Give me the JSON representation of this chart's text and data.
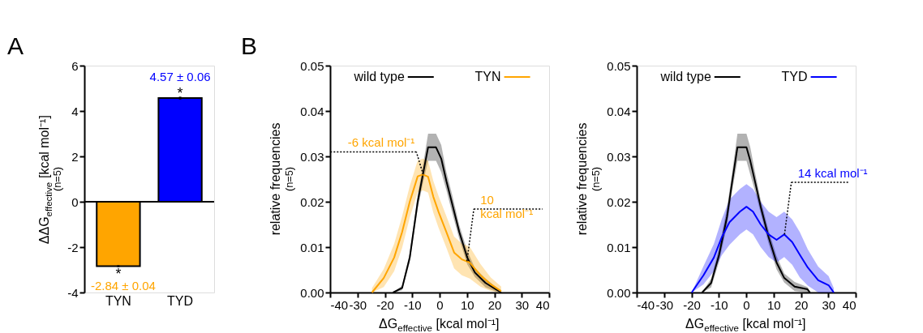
{
  "chart_data": [
    {
      "type": "bar",
      "categories": [
        "TYN",
        "TYD"
      ],
      "values": [
        -2.84,
        4.57
      ],
      "errors": [
        0.04,
        0.06
      ],
      "colors": [
        "#ffa500",
        "#0000ff"
      ],
      "value_labels": [
        "-2.84 ± 0.04",
        "4.57 ± 0.06"
      ],
      "ylabel": "ΔΔG$_{effective}$ [kcal mol⁻¹]\n(n=5)",
      "ylim": [
        -4,
        6
      ],
      "yticks": [
        -4,
        -2,
        0,
        2,
        4,
        6
      ],
      "ref_lines": [
        {
          "axis": "y",
          "value": 0
        }
      ],
      "annotations": [
        "A",
        {
          "text": "*",
          "x": "TYN",
          "y": -2.88
        },
        {
          "text": "*",
          "x": "TYD",
          "y": 4.63
        }
      ],
      "legend": false
    },
    {
      "type": "line",
      "xlabel": "ΔG$_{effective}$ [kcal mol⁻¹]",
      "ylabel": "relative frequencies\n(n=5)",
      "xlim": [
        -40,
        40
      ],
      "xticks": [
        -40,
        -30,
        -20,
        -10,
        0,
        10,
        20,
        30,
        40
      ],
      "ylim": [
        0,
        0.05
      ],
      "yticks": [
        {
          "value": 0,
          "label": "0.00"
        },
        {
          "value": 0.01,
          "label": "0.01"
        },
        {
          "value": 0.02,
          "label": "0.02"
        },
        {
          "value": 0.03,
          "label": "0.03"
        },
        {
          "value": 0.04,
          "label": "0.04"
        },
        {
          "value": 0.05,
          "label": "0.05"
        }
      ],
      "legend": "top",
      "annotations": [
        "B",
        {
          "text": "-6 kcal mol⁻¹",
          "x": -6,
          "y": 0.026
        },
        {
          "text": "10\nkcal mol⁻¹",
          "x": 10,
          "y": 0.0069
        }
      ],
      "series": [
        {
          "name": "wild type",
          "color": "#000000",
          "x": [
            -17,
            -13.7,
            -10.9,
            -8,
            -6.1,
            -4.2,
            -1.3,
            0.6,
            2.5,
            4.4,
            7.2,
            10.1,
            12.9,
            16.8,
            20.6,
            22.5
          ],
          "values": [
            0,
            0.001,
            0.0077,
            0.02,
            0.026,
            0.032,
            0.032,
            0.0295,
            0.0245,
            0.02,
            0.0133,
            0.0077,
            0.0044,
            0.0021,
            0.0007,
            0
          ],
          "lower": [
            0,
            0.0005,
            0.0067,
            0.0185,
            0.024,
            0.029,
            0.029,
            0.0265,
            0.0225,
            0.018,
            0.0118,
            0.0062,
            0.0034,
            0.0011,
            0.0002,
            0
          ],
          "upper": [
            0,
            0.0015,
            0.0087,
            0.0215,
            0.028,
            0.035,
            0.035,
            0.0325,
            0.0265,
            0.022,
            0.0148,
            0.0092,
            0.0054,
            0.0031,
            0.0012,
            0
          ]
        },
        {
          "name": "TYN",
          "color": "#ffa500",
          "x": [
            -24.7,
            -20.4,
            -16.6,
            -13.7,
            -10.9,
            -8,
            -6.1,
            -4.2,
            -2.3,
            -0.4,
            2.5,
            5.3,
            8.1,
            11,
            14.9,
            18.7,
            22.5
          ],
          "values": [
            0,
            0.0032,
            0.0077,
            0.0133,
            0.02,
            0.0256,
            0.026,
            0.0255,
            0.0211,
            0.0178,
            0.0133,
            0.0088,
            0.0073,
            0.0066,
            0.0038,
            0.0018,
            0.0003
          ],
          "lower": [
            0,
            0.0012,
            0.0047,
            0.0098,
            0.0165,
            0.0221,
            0.0225,
            0.022,
            0.0176,
            0.0143,
            0.0098,
            0.0053,
            0.0038,
            0.0031,
            0.0013,
            0.0003,
            0
          ],
          "upper": [
            0.001,
            0.0052,
            0.0107,
            0.0168,
            0.0235,
            0.0291,
            0.0295,
            0.029,
            0.0246,
            0.0213,
            0.0168,
            0.0123,
            0.0108,
            0.0101,
            0.0063,
            0.0033,
            0.0013
          ]
        }
      ]
    },
    {
      "type": "line",
      "xlabel": "ΔG$_{effective}$ [kcal mol⁻¹]",
      "ylabel": "relative frequencies\n(n=5)",
      "xlim": [
        -40,
        40
      ],
      "xticks": [
        -40,
        -30,
        -20,
        -10,
        0,
        10,
        20,
        30,
        40
      ],
      "ylim": [
        0,
        0.05
      ],
      "yticks": [
        {
          "value": 0,
          "label": "0.00"
        },
        {
          "value": 0.01,
          "label": "0.01"
        },
        {
          "value": 0.02,
          "label": "0.02"
        },
        {
          "value": 0.03,
          "label": "0.03"
        },
        {
          "value": 0.04,
          "label": "0.04"
        },
        {
          "value": 0.05,
          "label": "0.05"
        }
      ],
      "legend": "top",
      "annotations": [
        {
          "text": "14 kcal mol⁻¹",
          "x": 14,
          "y": 0.0128
        }
      ],
      "series": [
        {
          "name": "wild type",
          "color": "#000000",
          "x": [
            -16.1,
            -12.8,
            -9.9,
            -7,
            -5.1,
            -3.2,
            0.1,
            1.5,
            3.4,
            5.3,
            8.2,
            11.1,
            13.9,
            17.7,
            22.4,
            23.3
          ],
          "values": [
            0,
            0.0021,
            0.0083,
            0.0167,
            0.0245,
            0.032,
            0.032,
            0.029,
            0.024,
            0.0189,
            0.0122,
            0.0066,
            0.0032,
            0.0013,
            0.0007,
            0
          ],
          "lower": [
            0,
            0.0011,
            0.0068,
            0.0147,
            0.0225,
            0.029,
            0.029,
            0.026,
            0.022,
            0.0174,
            0.0107,
            0.0051,
            0.0022,
            0.0003,
            0,
            0
          ],
          "upper": [
            0,
            0.0031,
            0.0098,
            0.0187,
            0.0265,
            0.035,
            0.035,
            0.032,
            0.026,
            0.0204,
            0.0137,
            0.0081,
            0.0042,
            0.0023,
            0.0012,
            0
          ]
        },
        {
          "name": "TYD",
          "color": "#0000ff",
          "x": [
            -19.9,
            -15.6,
            -11.8,
            -8.9,
            -6.1,
            -2.3,
            0.1,
            2.5,
            5.3,
            8.2,
            11.1,
            13.9,
            16.8,
            19.6,
            22.5,
            26.3,
            30.1,
            32
          ],
          "values": [
            0,
            0.0038,
            0.0077,
            0.0122,
            0.0155,
            0.0178,
            0.0189,
            0.0178,
            0.015,
            0.0128,
            0.0116,
            0.0128,
            0.0111,
            0.0083,
            0.0055,
            0.0027,
            0.0016,
            0
          ],
          "lower": [
            0,
            0.0018,
            0.0047,
            0.0082,
            0.0105,
            0.0128,
            0.0139,
            0.0128,
            0.01,
            0.0078,
            0.0066,
            0.0078,
            0.0061,
            0.0033,
            0.0015,
            0,
            0,
            0
          ],
          "upper": [
            0,
            0.0058,
            0.0107,
            0.0162,
            0.0205,
            0.0228,
            0.0239,
            0.0228,
            0.02,
            0.0178,
            0.0166,
            0.0178,
            0.0161,
            0.0133,
            0.0095,
            0.0057,
            0.0036,
            0.001
          ]
        }
      ]
    }
  ]
}
